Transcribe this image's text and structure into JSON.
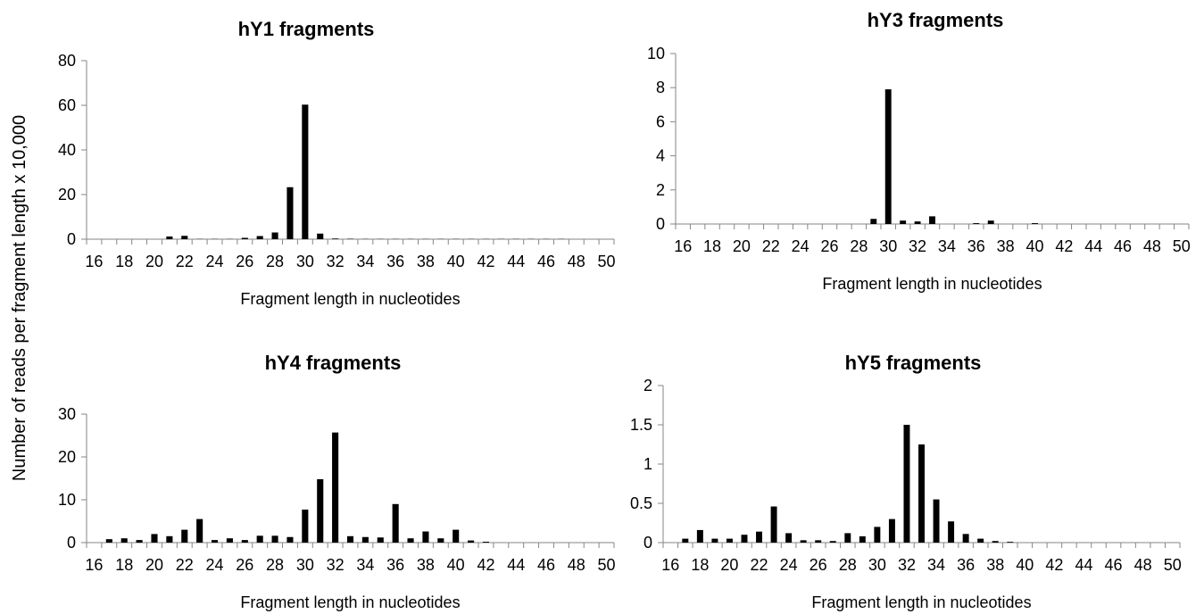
{
  "shared_ylabel": "Number of reads per fragment length x 10,000",
  "chart_data": [
    {
      "type": "bar",
      "title": "hY1 fragments",
      "xlabel": "Fragment length in nucleotides",
      "ylabel": "",
      "ylim": [
        0,
        80
      ],
      "yticks": [
        "0",
        "20",
        "40",
        "60",
        "80"
      ],
      "xtick_labels": [
        "16",
        "18",
        "20",
        "22",
        "24",
        "26",
        "28",
        "30",
        "32",
        "34",
        "36",
        "38",
        "40",
        "42",
        "44",
        "46",
        "48",
        "50"
      ],
      "categories": [
        16,
        17,
        18,
        19,
        20,
        21,
        22,
        23,
        24,
        25,
        26,
        27,
        28,
        29,
        30,
        31,
        32,
        33,
        34,
        35,
        36,
        37,
        38,
        39,
        40,
        41,
        42,
        43,
        44,
        45,
        46,
        47,
        48,
        49,
        50
      ],
      "values": [
        0,
        0,
        0,
        0,
        0,
        1.2,
        1.5,
        0.1,
        0.1,
        0.1,
        0.6,
        1.4,
        3.0,
        23.3,
        60.3,
        2.5,
        0.3,
        0.2,
        0.1,
        0.1,
        0.1,
        0.1,
        0.1,
        0.1,
        0.1,
        0.1,
        0.1,
        0.1,
        0.1,
        0.1,
        0.1,
        0.1,
        0,
        0,
        0
      ],
      "grid": false,
      "legend": "none"
    },
    {
      "type": "bar",
      "title": "hY3 fragments",
      "xlabel": "Fragment length in nucleotides",
      "ylabel": "",
      "ylim": [
        0,
        10
      ],
      "yticks": [
        "0",
        "2",
        "4",
        "6",
        "8",
        "10"
      ],
      "xtick_labels": [
        "16",
        "18",
        "20",
        "22",
        "24",
        "26",
        "28",
        "30",
        "32",
        "34",
        "36",
        "38",
        "40",
        "42",
        "44",
        "46",
        "48",
        "50"
      ],
      "categories": [
        16,
        17,
        18,
        19,
        20,
        21,
        22,
        23,
        24,
        25,
        26,
        27,
        28,
        29,
        30,
        31,
        32,
        33,
        34,
        35,
        36,
        37,
        38,
        39,
        40,
        41,
        42,
        43,
        44,
        45,
        46,
        47,
        48,
        49,
        50
      ],
      "values": [
        0,
        0,
        0,
        0,
        0,
        0,
        0,
        0,
        0,
        0,
        0,
        0,
        0,
        0.3,
        7.9,
        0.2,
        0.15,
        0.45,
        0,
        0,
        0.05,
        0.2,
        0,
        0,
        0.05,
        0,
        0,
        0,
        0,
        0,
        0,
        0,
        0,
        0,
        0
      ],
      "grid": false,
      "legend": "none"
    },
    {
      "type": "bar",
      "title": "hY4 fragments",
      "xlabel": "Fragment length in nucleotides",
      "ylabel": "",
      "ylim": [
        0,
        30
      ],
      "yticks": [
        "0",
        "10",
        "20",
        "30"
      ],
      "xtick_labels": [
        "16",
        "18",
        "20",
        "22",
        "24",
        "26",
        "28",
        "30",
        "32",
        "34",
        "36",
        "38",
        "40",
        "42",
        "44",
        "46",
        "48",
        "50"
      ],
      "categories": [
        16,
        17,
        18,
        19,
        20,
        21,
        22,
        23,
        24,
        25,
        26,
        27,
        28,
        29,
        30,
        31,
        32,
        33,
        34,
        35,
        36,
        37,
        38,
        39,
        40,
        41,
        42,
        43,
        44,
        45,
        46,
        47,
        48,
        49,
        50
      ],
      "values": [
        0,
        0.8,
        1.0,
        0.6,
        2.0,
        1.5,
        3.0,
        5.5,
        0.6,
        1.0,
        0.6,
        1.6,
        1.6,
        1.3,
        7.7,
        14.8,
        25.7,
        1.5,
        1.3,
        1.2,
        9.0,
        1.0,
        2.6,
        1.0,
        3.0,
        0.5,
        0.2,
        0,
        0,
        0,
        0,
        0,
        0,
        0,
        0
      ],
      "grid": false,
      "legend": "none"
    },
    {
      "type": "bar",
      "title": "hY5 fragments",
      "xlabel": "Fragment length in nucleotides",
      "ylabel": "",
      "ylim": [
        0,
        2
      ],
      "yticks": [
        "0",
        "0.5",
        "1",
        "1.5",
        "2"
      ],
      "xtick_labels": [
        "16",
        "18",
        "20",
        "22",
        "24",
        "26",
        "28",
        "30",
        "32",
        "34",
        "36",
        "38",
        "40",
        "42",
        "44",
        "46",
        "48",
        "50"
      ],
      "categories": [
        16,
        17,
        18,
        19,
        20,
        21,
        22,
        23,
        24,
        25,
        26,
        27,
        28,
        29,
        30,
        31,
        32,
        33,
        34,
        35,
        36,
        37,
        38,
        39,
        40,
        41,
        42,
        43,
        44,
        45,
        46,
        47,
        48,
        49,
        50
      ],
      "values": [
        0,
        0.05,
        0.16,
        0.05,
        0.05,
        0.1,
        0.14,
        0.46,
        0.12,
        0.03,
        0.03,
        0.02,
        0.12,
        0.08,
        0.2,
        0.3,
        1.5,
        1.25,
        0.55,
        0.27,
        0.11,
        0.05,
        0.02,
        0.01,
        0,
        0,
        0,
        0,
        0,
        0,
        0,
        0,
        0,
        0,
        0
      ],
      "grid": false,
      "legend": "none"
    }
  ]
}
